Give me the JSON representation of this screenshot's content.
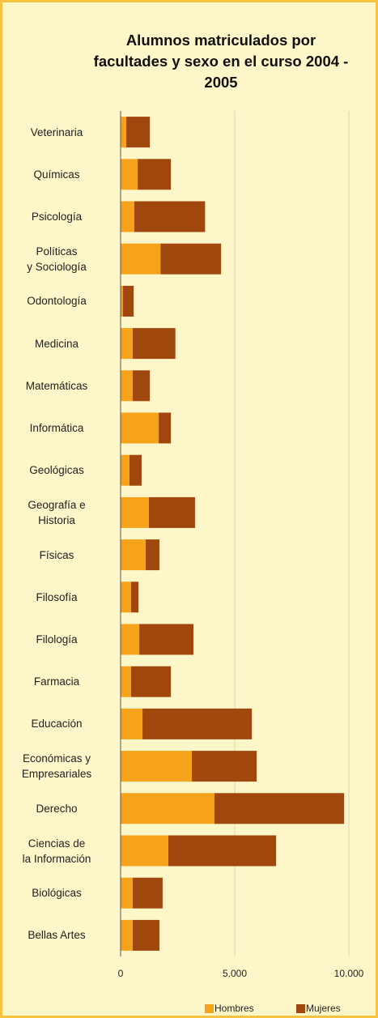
{
  "chart_data": {
    "type": "bar",
    "orientation": "horizontal",
    "stacked": true,
    "title": "Alumnos matriculados por facultades y sexo en el curso 2004 - 2005",
    "categories": [
      "Veterinaria",
      "Químicas",
      "Psicología",
      "Políticas\ny Sociología",
      "Odontología",
      "Medicina",
      "Matemáticas",
      "Informática",
      "Geológicas",
      "Geografía e\nHistoria",
      "Físicas",
      "Filosofía",
      "Filología",
      "Farmacia",
      "Educación",
      "Económicas y\nEmpresariales",
      "Derecho",
      "Ciencias de\nla Información",
      "Biológicas",
      "Bellas Artes"
    ],
    "series": [
      {
        "name": "Hombres",
        "color": "#f7a21b",
        "values": [
          250,
          750,
          600,
          1750,
          100,
          530,
          530,
          1670,
          390,
          1240,
          1100,
          460,
          820,
          460,
          960,
          3120,
          4110,
          2090,
          530,
          530
        ]
      },
      {
        "name": "Mujeres",
        "color": "#a0470d",
        "values": [
          1030,
          1450,
          3100,
          2650,
          470,
          1870,
          750,
          530,
          530,
          2020,
          600,
          320,
          2370,
          1740,
          4790,
          2840,
          5680,
          4720,
          1310,
          1170
        ]
      }
    ],
    "xlim": [
      0,
      10000
    ],
    "xticks": [
      0,
      {
        "value": 5000,
        "label": "5.000"
      },
      {
        "value": 10000,
        "label": "10.000"
      }
    ],
    "grid": true,
    "legend": "bottom"
  }
}
